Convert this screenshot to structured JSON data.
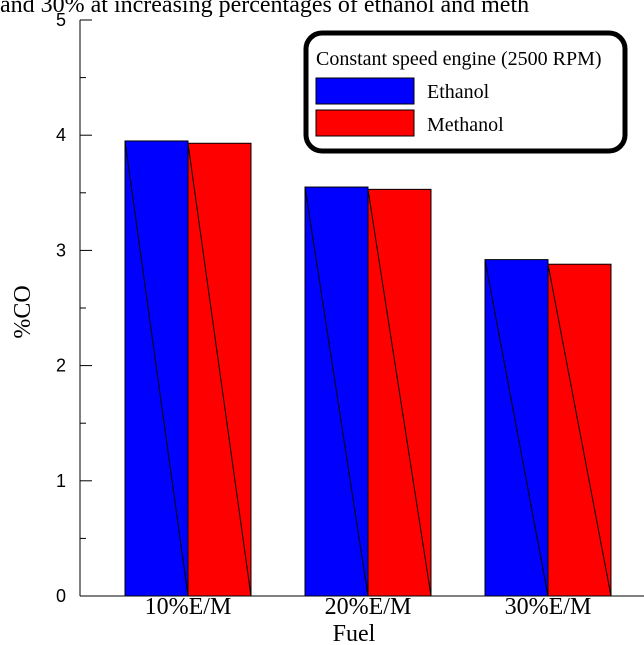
{
  "chart_data": {
    "type": "bar",
    "title": "and 30% at increasing percentages of ethanol and meth",
    "xlabel": "Fuel",
    "ylabel": "%CO",
    "categories": [
      "10%E/M",
      "20%E/M",
      "30%E/M"
    ],
    "series": [
      {
        "name": "Ethanol",
        "values": [
          3.95,
          3.55,
          2.92
        ],
        "color": "#0000ff"
      },
      {
        "name": "Methanol",
        "values": [
          3.93,
          3.53,
          2.88
        ],
        "color": "#ff0000"
      }
    ],
    "ylim": [
      0,
      5
    ],
    "yticks": [
      "0",
      "1",
      "2",
      "3",
      "4",
      "5"
    ],
    "legend_title": "Constant speed engine (2500 RPM)",
    "legend_position": "top-right",
    "grid": false
  }
}
